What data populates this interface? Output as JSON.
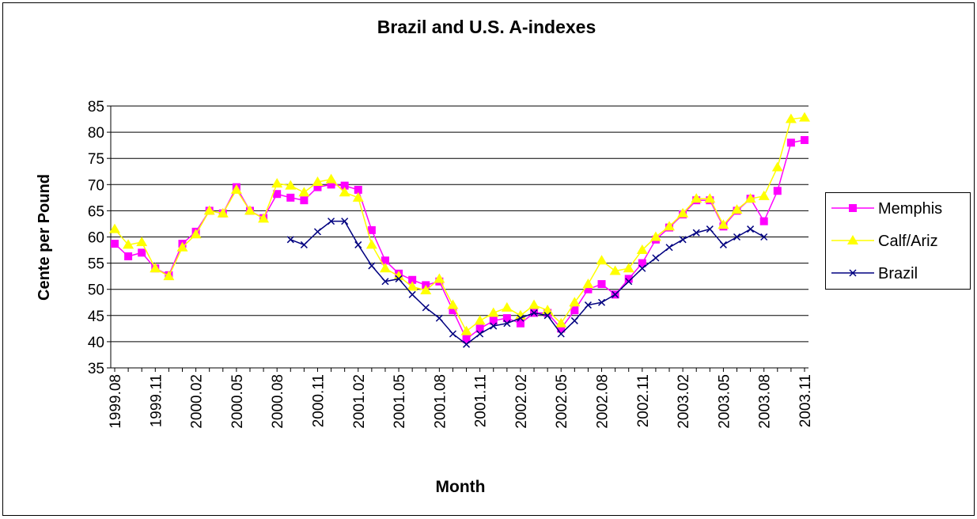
{
  "chart_data": {
    "type": "line",
    "title": "Brazil and U.S. A-indexes",
    "x_label": "Month",
    "y_label": "Cente per Pound",
    "categories": [
      "1999.08",
      null,
      null,
      "1999.11",
      null,
      null,
      "2000.02",
      null,
      null,
      "2000.05",
      null,
      null,
      "2000.08",
      null,
      null,
      "2000.11",
      null,
      null,
      "2001.02",
      null,
      null,
      "2001.05",
      null,
      null,
      "2001.08",
      null,
      null,
      "2001.11",
      null,
      null,
      "2002.02",
      null,
      null,
      "2002.05",
      null,
      null,
      "2002.08",
      null,
      null,
      "2002.11",
      null,
      null,
      "2003.02",
      null,
      null,
      "2003.05",
      null,
      null,
      "2003.08",
      null,
      null,
      "2003.11"
    ],
    "series": [
      {
        "name": "Memphis",
        "color": "#ff00ff",
        "marker": "square",
        "values": [
          58.7,
          56.3,
          57,
          54,
          52.7,
          58.7,
          61,
          65,
          64.5,
          69.5,
          65,
          63.6,
          68.2,
          67.5,
          67,
          69.5,
          70,
          69.8,
          69,
          61.3,
          55.5,
          53,
          51.8,
          50.8,
          51.5,
          46,
          40.5,
          42.5,
          44,
          44.5,
          43.5,
          45.5,
          45.5,
          42.5,
          46,
          50,
          51,
          49,
          52,
          55,
          59.5,
          61.8,
          64.3,
          67,
          67,
          62,
          65,
          67.3,
          63,
          68.8,
          78,
          78.5
        ]
      },
      {
        "name": "Calf/Ariz",
        "color": "#ffff00",
        "marker": "triangle",
        "values": [
          61.5,
          58.5,
          59,
          54,
          52.5,
          58,
          60.5,
          65,
          64.5,
          69,
          65,
          63.5,
          70.2,
          69.8,
          68.5,
          70.5,
          71,
          68.5,
          67.5,
          58.5,
          54,
          52.5,
          50.5,
          49.8,
          52,
          47,
          42,
          44,
          45.5,
          46.5,
          45,
          47,
          46,
          43.5,
          47.5,
          51,
          55.5,
          53.5,
          54,
          57.5,
          60,
          62,
          64.5,
          67.3,
          67.3,
          62.3,
          65.2,
          67.3,
          67.8,
          73.3,
          82.5,
          82.8
        ]
      },
      {
        "name": "Brazil",
        "color": "#000080",
        "marker": "x",
        "values": [
          null,
          null,
          null,
          null,
          null,
          null,
          null,
          null,
          null,
          null,
          null,
          null,
          null,
          59.5,
          58.5,
          61,
          63,
          63,
          58.5,
          54.5,
          51.5,
          52,
          49,
          46.5,
          44.5,
          41.5,
          39.5,
          41.5,
          43,
          43.5,
          44.5,
          45.5,
          45,
          41.5,
          44,
          47,
          47.5,
          49,
          51.5,
          54,
          56,
          58,
          59.5,
          60.8,
          61.5,
          58.5,
          60,
          61.5,
          60,
          null,
          null,
          null
        ]
      }
    ],
    "ylim": [
      35,
      85
    ],
    "yticks": [
      35,
      40,
      45,
      50,
      55,
      60,
      65,
      70,
      75,
      80,
      85
    ],
    "grid": true,
    "legend": "right"
  }
}
